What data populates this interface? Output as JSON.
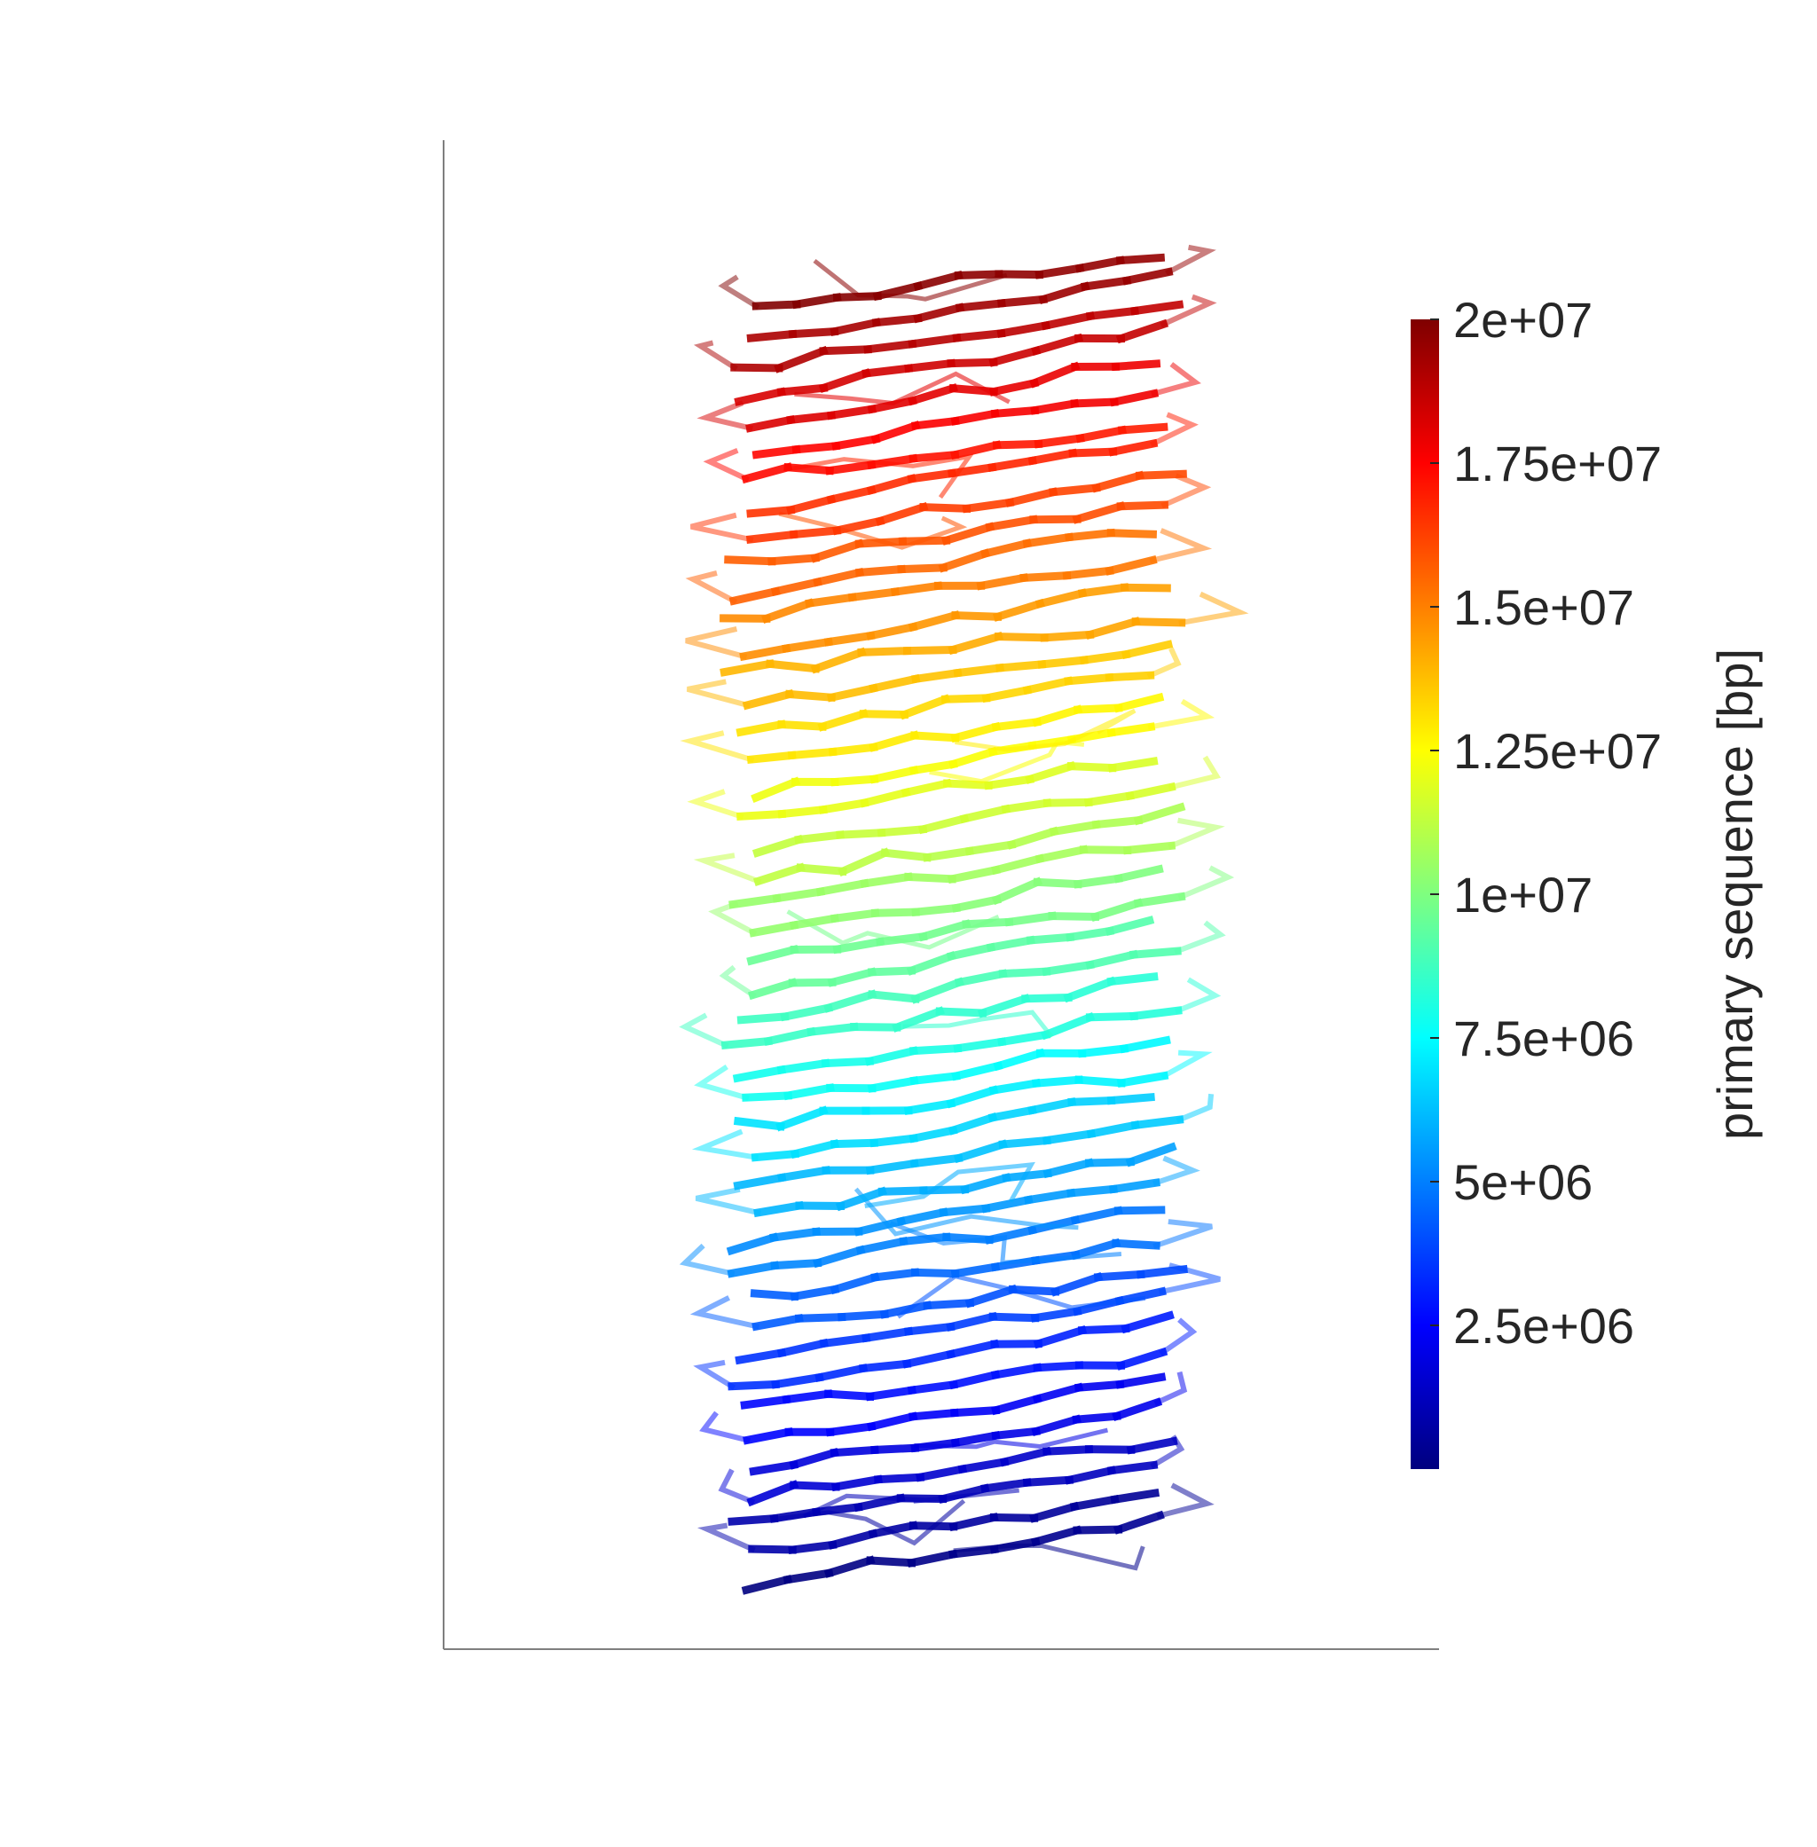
{
  "chart_data": {
    "type": "line",
    "subtype": "3d-chromatin-trace",
    "title": "",
    "xlabel": "",
    "ylabel": "",
    "grid": false,
    "colormap": "jet",
    "colorbar": {
      "label": "primary sequence [bp]",
      "range": [
        0,
        20000000
      ],
      "ticks": [
        2500000,
        5000000,
        7500000,
        10000000,
        12500000,
        15000000,
        17500000,
        20000000
      ],
      "tick_labels": [
        "2.5e+06",
        "5e+06",
        "7.5e+06",
        "1e+07",
        "1.25e+07",
        "1.5e+07",
        "1.75e+07",
        "2e+07"
      ]
    },
    "trace": {
      "sequence_start": 0,
      "sequence_end": 20000000,
      "bands": 46,
      "y_range": [
        0,
        1
      ],
      "x_range": [
        0,
        1
      ]
    }
  }
}
